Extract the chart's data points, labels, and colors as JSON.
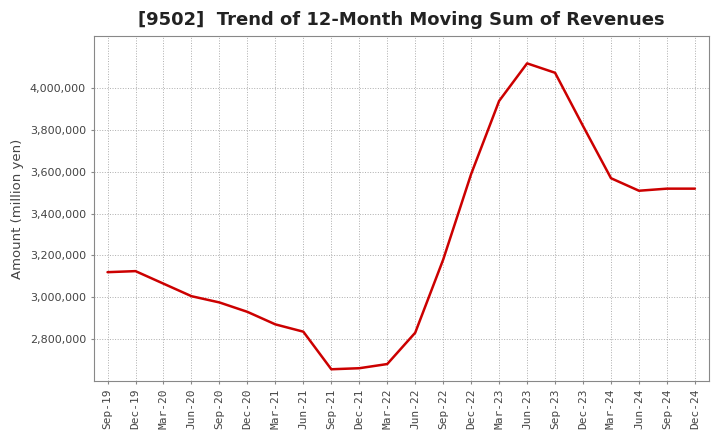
{
  "title": "[9502]  Trend of 12-Month Moving Sum of Revenues",
  "ylabel": "Amount (million yen)",
  "background_color": "#ffffff",
  "plot_background_color": "#ffffff",
  "grid_color": "#999999",
  "line_color": "#cc0000",
  "line_width": 1.8,
  "x_labels": [
    "Sep-19",
    "Dec-19",
    "Mar-20",
    "Jun-20",
    "Sep-20",
    "Dec-20",
    "Mar-21",
    "Jun-21",
    "Sep-21",
    "Dec-21",
    "Mar-22",
    "Jun-22",
    "Sep-22",
    "Dec-22",
    "Mar-23",
    "Jun-23",
    "Sep-23",
    "Dec-23",
    "Mar-24",
    "Jun-24",
    "Sep-24",
    "Dec-24"
  ],
  "y_values": [
    3120000,
    3125000,
    3065000,
    3005000,
    2975000,
    2930000,
    2870000,
    2835000,
    2655000,
    2660000,
    2680000,
    2830000,
    3180000,
    3590000,
    3940000,
    4120000,
    4075000,
    3820000,
    3570000,
    3510000,
    3520000,
    3520000
  ],
  "ylim": [
    2600000,
    4250000
  ],
  "yticks": [
    2800000,
    3000000,
    3200000,
    3400000,
    3600000,
    3800000,
    4000000
  ],
  "title_fontsize": 13,
  "tick_fontsize": 8,
  "ylabel_fontsize": 9.5,
  "title_color": "#222222",
  "tick_color": "#444444"
}
